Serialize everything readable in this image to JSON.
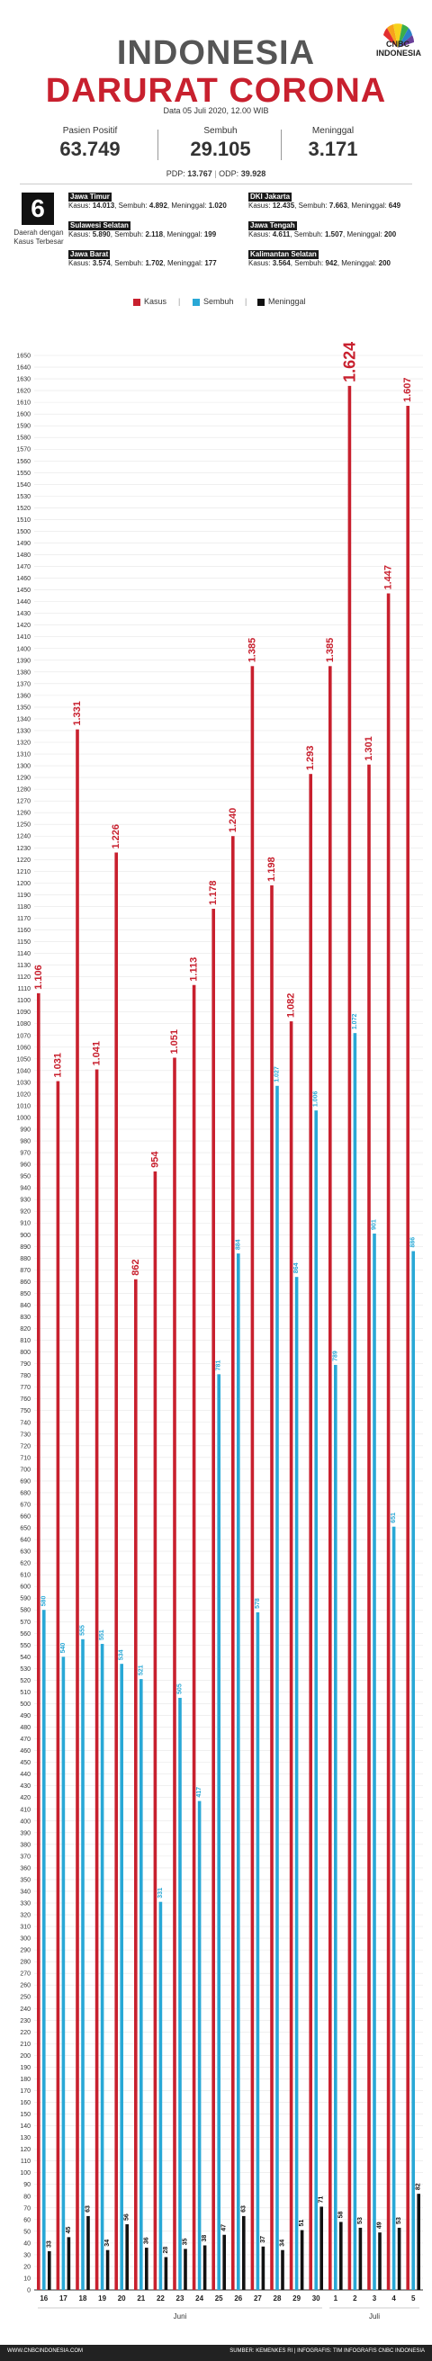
{
  "header": {
    "title_line1": "INDONESIA",
    "title_line2": "DARURAT CORONA",
    "logo_text": "CNBC INDONESIA",
    "date": "Data 05 Juli 2020, 12.00 WIB",
    "stats": [
      {
        "label": "Pasien Positif",
        "value": "63.749"
      },
      {
        "label": "Sembuh",
        "value": "29.105"
      },
      {
        "label": "Meninggal",
        "value": "3.171"
      }
    ],
    "pdp_label": "PDP:",
    "pdp_value": "13.767",
    "odp_label": "ODP:",
    "odp_value": "39.928"
  },
  "provinces": {
    "count": "6",
    "caption": "Daerah dengan Kasus Terbesar",
    "items": [
      {
        "name": "Jawa Timur",
        "kasus": "14.013",
        "sembuh": "4.892",
        "meninggal": "1.020"
      },
      {
        "name": "DKI Jakarta",
        "kasus": "12.435",
        "sembuh": "7.663",
        "meninggal": "649"
      },
      {
        "name": "Sulawesi Selatan",
        "kasus": "5.890",
        "sembuh": "2.118",
        "meninggal": "199"
      },
      {
        "name": "Jawa Tengah",
        "kasus": "4.611",
        "sembuh": "1.507",
        "meninggal": "200"
      },
      {
        "name": "Jawa Barat",
        "kasus": "3.574",
        "sembuh": "1.702",
        "meninggal": "177"
      },
      {
        "name": "Kalimantan Selatan",
        "kasus": "3.564",
        "sembuh": "942",
        "meninggal": "200"
      }
    ],
    "kasus_label": "Kasus:",
    "sembuh_label": "Sembuh:",
    "meninggal_label": "Meninggal:"
  },
  "legend": [
    {
      "label": "Kasus",
      "color": "#c8202e"
    },
    {
      "label": "Sembuh",
      "color": "#29a8d6"
    },
    {
      "label": "Meninggal",
      "color": "#111111"
    }
  ],
  "chart_data": {
    "type": "bar",
    "categories": [
      "16",
      "17",
      "18",
      "19",
      "20",
      "21",
      "22",
      "23",
      "24",
      "25",
      "26",
      "27",
      "28",
      "29",
      "30",
      "1",
      "2",
      "3",
      "4",
      "5"
    ],
    "month_labels": [
      {
        "label": "Juni",
        "from": 0,
        "to": 14
      },
      {
        "label": "Juli",
        "from": 15,
        "to": 19
      }
    ],
    "series": [
      {
        "name": "Kasus",
        "color": "#c8202e",
        "values": [
          1106,
          1031,
          1331,
          1041,
          1226,
          862,
          954,
          1051,
          1113,
          1178,
          1240,
          1385,
          1198,
          1082,
          1293,
          1385,
          1624,
          1301,
          1447,
          1607
        ],
        "labels": [
          "1.106",
          "1.031",
          "1.331",
          "1.041",
          "1.226",
          "862",
          "954",
          "1.051",
          "1.113",
          "1.178",
          "1.240",
          "1.385",
          "1.198",
          "1.082",
          "1.293",
          "1.385",
          "1.624",
          "1.301",
          "1.447",
          "1.607"
        ]
      },
      {
        "name": "Sembuh",
        "color": "#29a8d6",
        "values": [
          580,
          540,
          555,
          551,
          534,
          521,
          331,
          505,
          417,
          781,
          884,
          578,
          1027,
          864,
          1006,
          789,
          1072,
          901,
          651,
          886
        ],
        "labels": [
          "580",
          "540",
          "555",
          "551",
          "534",
          "521",
          "331",
          "505",
          "417",
          "781",
          "884",
          "578",
          "1.027",
          "864",
          "1.006",
          "789",
          "1.072",
          "901",
          "651",
          "886"
        ]
      },
      {
        "name": "Meninggal",
        "color": "#111111",
        "values": [
          33,
          45,
          63,
          34,
          56,
          36,
          28,
          35,
          38,
          47,
          63,
          37,
          34,
          51,
          71,
          58,
          53,
          49,
          53,
          82
        ],
        "labels": [
          "33",
          "45",
          "63",
          "34",
          "56",
          "36",
          "28",
          "35",
          "38",
          "47",
          "63",
          "37",
          "34",
          "51",
          "71",
          "58",
          "53",
          "49",
          "53",
          "82"
        ]
      }
    ],
    "ylim": [
      0,
      1650
    ],
    "ytick_step": 10,
    "grid": true,
    "legend_position": "top-center"
  },
  "footer": {
    "left": "WWW.CNBCINDONESIA.COM",
    "right": "SUMBER: KEMENKES RI | INFOGRAFIS: TIM INFOGRAFIS CNBC INDONESIA"
  }
}
